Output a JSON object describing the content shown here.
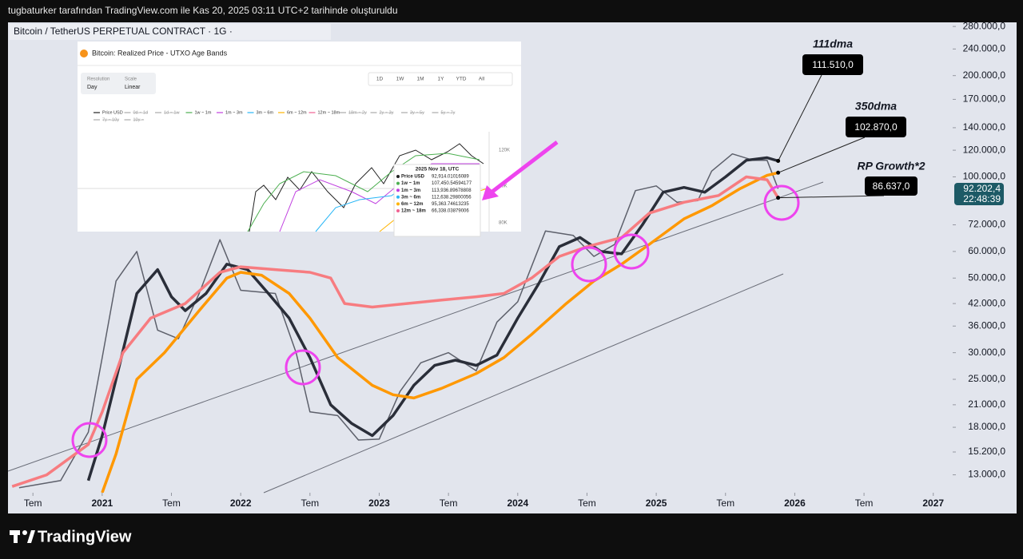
{
  "header": {
    "text": "tugbaturker tarafından TradingView.com ile Kas 20, 2025 03:11 UTC+2 tarihinde oluşturuldu"
  },
  "symbol": "Bitcoin / TetherUS PERPETUAL CONTRACT · 1G ·",
  "logo": "TradingView",
  "inset": {
    "title": "Bitcoin: Realized Price - UTXO Age Bands",
    "controls": [
      {
        "caption": "Resolution",
        "value": "Day"
      },
      {
        "caption": "Scale",
        "value": "Linear"
      }
    ],
    "ranges": [
      "1D",
      "1W",
      "1M",
      "1Y",
      "YTD",
      "All"
    ],
    "legend": [
      "Price USD",
      "0d ~ 1d",
      "1d ~ 1w",
      "1w ~ 1m",
      "1m ~ 3m",
      "3m ~ 6m",
      "6m ~ 12m",
      "12m ~ 18m",
      "18m ~ 2y",
      "2y ~ 3y",
      "3y ~ 5y",
      "5y ~ 7y",
      "7y ~ 10y",
      "10y ~"
    ],
    "axis": [
      "120K",
      "90K",
      "80K"
    ],
    "tooltip": {
      "date": "2025 Nov 18, UTC",
      "rows": [
        [
          "Price USD",
          "92,914.01016089"
        ],
        [
          "1w ~ 1m",
          "107,450.54594177"
        ],
        [
          "1m ~ 3m",
          "113,936.89678808"
        ],
        [
          "3m ~ 6m",
          "112,638.29800056"
        ],
        [
          "6m ~ 12m",
          "95,363.74613235"
        ],
        [
          "12m ~ 18m",
          "66,338.03879006"
        ]
      ]
    }
  },
  "chart_data": {
    "type": "line",
    "log_scale": true,
    "grid": false,
    "xlim": [
      2020.32,
      2027.14
    ],
    "xticks": [
      {
        "value": 2020.5,
        "label": "Tem"
      },
      2021,
      {
        "value": 2021.5,
        "label": "Tem"
      },
      2022,
      {
        "value": 2022.5,
        "label": "Tem"
      },
      2023,
      {
        "value": 2023.5,
        "label": "Tem"
      },
      2024,
      {
        "value": 2024.5,
        "label": "Tem"
      },
      2025,
      {
        "value": 2025.5,
        "label": "Tem"
      },
      2026,
      {
        "value": 2026.5,
        "label": "Tem"
      },
      2027
    ],
    "ylim": [
      11500,
      288000
    ],
    "yticks": [
      {
        "value": 13000,
        "label": "13.000,0"
      },
      {
        "value": 15200,
        "label": "15.200,0"
      },
      {
        "value": 18000,
        "label": "18.000,0"
      },
      {
        "value": 21000,
        "label": "21.000,0"
      },
      {
        "value": 25000,
        "label": "25.000,0"
      },
      {
        "value": 30000,
        "label": "30.000,0"
      },
      {
        "value": 36000,
        "label": "36.000,0"
      },
      {
        "value": 42000,
        "label": "42.000,0"
      },
      {
        "value": 50000,
        "label": "50.000,0"
      },
      {
        "value": 60000,
        "label": "60.000,0"
      },
      {
        "value": 72000,
        "label": "72.000,0"
      },
      {
        "value": 100000,
        "label": "100.000,0"
      },
      {
        "value": 120000,
        "label": "120.000,0"
      },
      {
        "value": 140000,
        "label": "140.000,0"
      },
      {
        "value": 170000,
        "label": "170.000,0"
      },
      {
        "value": 200000,
        "label": "200.000,0"
      },
      {
        "value": 240000,
        "label": "240.000,0"
      },
      {
        "value": 280000,
        "label": "280.000,0"
      }
    ],
    "price_countdown": "22:48:39",
    "series": [
      {
        "color": "#5d606b",
        "x": [
          2020.4,
          2020.7,
          2020.9,
          2021.0,
          2021.1,
          2021.25,
          2021.4,
          2021.55,
          2021.7,
          2021.85,
          2022.0,
          2022.25,
          2022.4,
          2022.5,
          2022.7,
          2022.85,
          2023.0,
          2023.15,
          2023.3,
          2023.5,
          2023.7,
          2023.85,
          2024.0,
          2024.2,
          2024.4,
          2024.55,
          2024.7,
          2024.85,
          2025.0,
          2025.15,
          2025.3,
          2025.4,
          2025.55,
          2025.7,
          2025.8,
          2025.88
        ],
        "values": [
          11900,
          12500,
          17400,
          29000,
          49000,
          60000,
          35000,
          33000,
          45000,
          65000,
          46000,
          45000,
          30000,
          20000,
          19500,
          16500,
          16600,
          23000,
          28000,
          30000,
          26500,
          37000,
          42500,
          69000,
          67000,
          58000,
          63000,
          91000,
          94000,
          84000,
          85000,
          104000,
          117000,
          112000,
          112000,
          92202.4
        ],
        "value_labels": [
          null,
          null,
          null,
          null,
          null,
          null,
          null,
          null,
          null,
          null,
          null,
          null,
          null,
          null,
          null,
          null,
          null,
          null,
          null,
          null,
          null,
          null,
          null,
          null,
          null,
          null,
          null,
          null,
          null,
          null,
          null,
          null,
          null,
          null,
          null,
          "92.202,4"
        ]
      },
      {
        "name": "111dma",
        "color": "#2a2e39",
        "x": [
          2020.9,
          2021.0,
          2021.1,
          2021.25,
          2021.4,
          2021.5,
          2021.6,
          2021.75,
          2021.9,
          2022.05,
          2022.2,
          2022.35,
          2022.5,
          2022.65,
          2022.8,
          2022.95,
          2023.1,
          2023.25,
          2023.4,
          2023.55,
          2023.7,
          2023.85,
          2024.0,
          2024.15,
          2024.3,
          2024.45,
          2024.6,
          2024.75,
          2024.9,
          2025.05,
          2025.2,
          2025.35,
          2025.5,
          2025.65,
          2025.8,
          2025.88
        ],
        "values": [
          12500,
          17000,
          25000,
          45000,
          53000,
          44000,
          40000,
          45000,
          55000,
          53000,
          45000,
          38000,
          29000,
          21000,
          18500,
          17000,
          19500,
          24000,
          27500,
          28500,
          27500,
          29500,
          38000,
          48000,
          62000,
          66000,
          60000,
          59000,
          72000,
          90000,
          93000,
          90000,
          100000,
          112000,
          114000,
          111510
        ],
        "value_labels": [
          null,
          null,
          null,
          null,
          null,
          null,
          null,
          null,
          null,
          null,
          null,
          null,
          null,
          null,
          null,
          null,
          null,
          null,
          null,
          null,
          null,
          null,
          null,
          null,
          null,
          null,
          null,
          null,
          null,
          null,
          null,
          null,
          null,
          null,
          null,
          "111.510,0"
        ]
      },
      {
        "name": "350dma",
        "color": "#ff9800",
        "x": [
          2021.0,
          2021.1,
          2021.25,
          2021.45,
          2021.7,
          2021.9,
          2022.0,
          2022.15,
          2022.35,
          2022.5,
          2022.7,
          2022.95,
          2023.1,
          2023.25,
          2023.45,
          2023.7,
          2023.9,
          2024.1,
          2024.35,
          2024.55,
          2024.75,
          2024.95,
          2025.2,
          2025.4,
          2025.6,
          2025.8,
          2025.88
        ],
        "values": [
          11500,
          15000,
          25000,
          30000,
          40000,
          50000,
          52000,
          51000,
          45000,
          38000,
          29000,
          24000,
          22500,
          22000,
          23500,
          26000,
          29000,
          34000,
          42000,
          49000,
          55000,
          63000,
          75000,
          82000,
          92000,
          101000,
          102870
        ],
        "value_labels": [
          null,
          null,
          null,
          null,
          null,
          null,
          null,
          null,
          null,
          null,
          null,
          null,
          null,
          null,
          null,
          null,
          null,
          null,
          null,
          null,
          null,
          null,
          null,
          null,
          null,
          null,
          "102.870,0"
        ]
      },
      {
        "name": "RP Growth*2",
        "color": "#f77c80",
        "x": [
          2020.35,
          2020.6,
          2020.9,
          2021.0,
          2021.15,
          2021.35,
          2021.6,
          2021.85,
          2022.0,
          2022.25,
          2022.5,
          2022.65,
          2022.75,
          2022.95,
          2023.2,
          2023.45,
          2023.7,
          2023.9,
          2024.1,
          2024.3,
          2024.5,
          2024.75,
          2024.95,
          2025.2,
          2025.45,
          2025.65,
          2025.8,
          2025.88
        ],
        "values": [
          12000,
          13000,
          16000,
          20000,
          30000,
          38000,
          42000,
          52000,
          54000,
          53000,
          52000,
          50000,
          42000,
          41000,
          42000,
          43000,
          44000,
          45000,
          50000,
          58000,
          62000,
          66000,
          78000,
          84000,
          88000,
          100000,
          98000,
          86637
        ],
        "value_labels": [
          null,
          null,
          null,
          null,
          null,
          null,
          null,
          null,
          null,
          null,
          null,
          null,
          null,
          null,
          null,
          null,
          null,
          null,
          null,
          null,
          null,
          null,
          null,
          null,
          null,
          null,
          null,
          "86.637,0"
        ]
      }
    ]
  }
}
